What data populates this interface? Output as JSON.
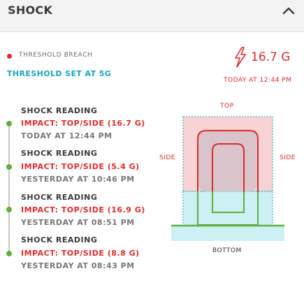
{
  "header": {
    "title": "SHOCK"
  },
  "status": {
    "breach_label": "THRESHOLD BREACH",
    "threshold_text": "THRESHOLD SET AT 5G",
    "peak_value": "16.7 G",
    "peak_time": "TODAY AT 12:44 PM"
  },
  "readings": [
    {
      "title": "SHOCK READING",
      "impact": "IMPACT: TOP/SIDE (16.7 G)",
      "time": "TODAY AT 12:44 PM"
    },
    {
      "title": "SHOCK READING",
      "impact": "IMPACT: TOP/SIDE (5.4 G)",
      "time": "YESTERDAY AT 10:46 PM"
    },
    {
      "title": "SHOCK READING",
      "impact": "IMPACT: TOP/SIDE (16.9 G)",
      "time": "YESTERDAY AT 08:51 PM"
    },
    {
      "title": "SHOCK READING",
      "impact": "IMPACT: TOP/SIDE (8.8 G)",
      "time": "YESTERDAY AT 08:43 PM"
    }
  ],
  "diagram": {
    "top_label": "TOP",
    "side_left_label": "SIDE",
    "side_right_label": "SIDE",
    "bottom_label": "BOTTOM"
  },
  "colors": {
    "alert": "#e02b2b",
    "accent": "#1aa6b8",
    "ok": "#5fae3e"
  }
}
